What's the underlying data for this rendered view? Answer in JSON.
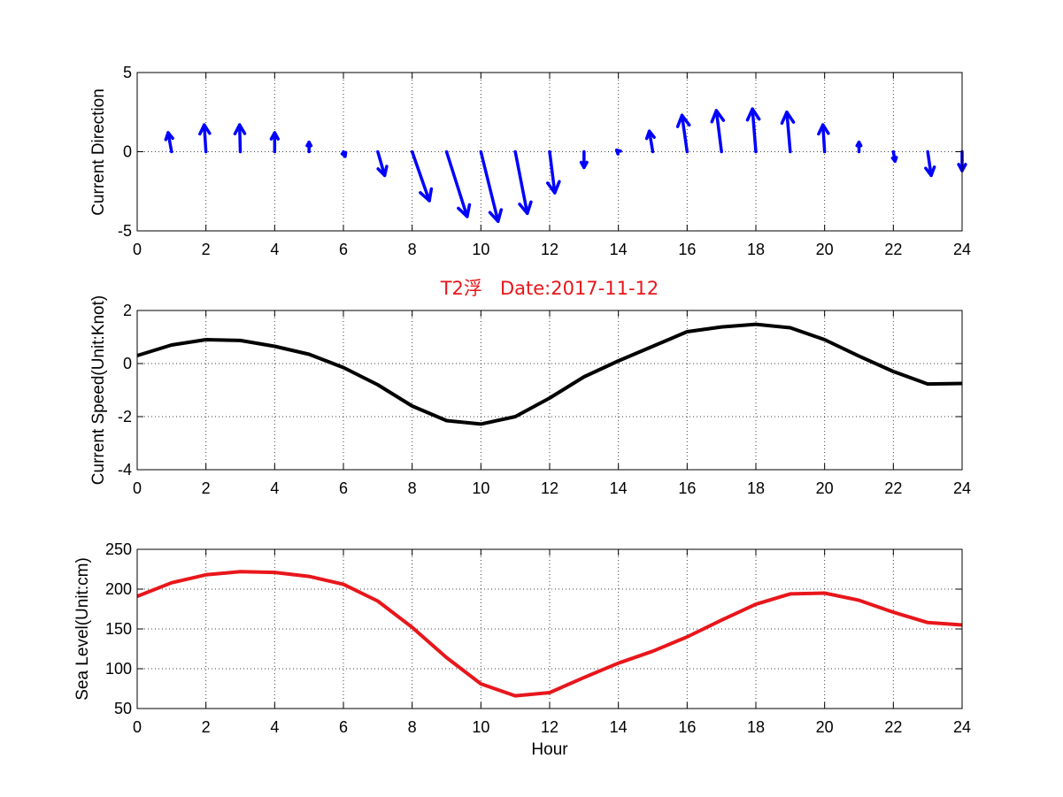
{
  "figure": {
    "title": "T2浮   Date:2017-11-12",
    "title_color": "#e8161b"
  },
  "chart_data": [
    {
      "type": "quiver",
      "ylabel": "Current Direction",
      "xlabel": "",
      "xlim": [
        0,
        24
      ],
      "ylim": [
        -5,
        5
      ],
      "xticks": [
        0,
        2,
        4,
        6,
        8,
        10,
        12,
        14,
        16,
        18,
        20,
        22,
        24
      ],
      "yticks": [
        -5,
        0,
        5
      ],
      "grid": true,
      "color": "#0000ff",
      "x": [
        1,
        2,
        3,
        4,
        5,
        6,
        7,
        8,
        9,
        10,
        11,
        12,
        13,
        14,
        15,
        16,
        17,
        18,
        19,
        20,
        21,
        22,
        23,
        24
      ],
      "u": [
        -0.1,
        -0.05,
        -0.02,
        0.0,
        0.0,
        0.05,
        0.2,
        0.5,
        0.6,
        0.5,
        0.35,
        0.15,
        0.0,
        -0.05,
        -0.1,
        -0.15,
        -0.15,
        -0.1,
        -0.1,
        -0.05,
        0.0,
        0.05,
        0.1,
        0.0
      ],
      "v": [
        1.2,
        1.7,
        1.7,
        1.2,
        0.6,
        -0.3,
        -1.5,
        -3.1,
        -4.1,
        -4.4,
        -3.9,
        -2.6,
        -1.0,
        0.1,
        1.3,
        2.3,
        2.6,
        2.7,
        2.5,
        1.7,
        0.6,
        -0.6,
        -1.5,
        -1.2
      ]
    },
    {
      "type": "line",
      "ylabel": "Current Speed(Unit:Knot)",
      "xlabel": "",
      "xlim": [
        0,
        24
      ],
      "ylim": [
        -4,
        2
      ],
      "xticks": [
        0,
        2,
        4,
        6,
        8,
        10,
        12,
        14,
        16,
        18,
        20,
        22,
        24
      ],
      "yticks": [
        -4,
        -2,
        0,
        2
      ],
      "grid": true,
      "series": [
        {
          "color": "#000000",
          "x": [
            0,
            1,
            2,
            3,
            4,
            5,
            6,
            7,
            8,
            9,
            10,
            11,
            12,
            13,
            14,
            15,
            16,
            17,
            18,
            19,
            20,
            21,
            22,
            23,
            24
          ],
          "y": [
            0.3,
            0.7,
            0.9,
            0.87,
            0.65,
            0.35,
            -0.15,
            -0.8,
            -1.6,
            -2.15,
            -2.28,
            -2.0,
            -1.3,
            -0.5,
            0.1,
            0.65,
            1.2,
            1.38,
            1.48,
            1.35,
            0.9,
            0.28,
            -0.3,
            -0.77,
            -0.75
          ]
        }
      ]
    },
    {
      "type": "line",
      "ylabel": "Sea Level(Unit:cm)",
      "xlabel": "Hour",
      "xlim": [
        0,
        24
      ],
      "ylim": [
        50,
        250
      ],
      "xticks": [
        0,
        2,
        4,
        6,
        8,
        10,
        12,
        14,
        16,
        18,
        20,
        22,
        24
      ],
      "yticks": [
        50,
        100,
        150,
        200,
        250
      ],
      "grid": true,
      "series": [
        {
          "color": "#e8161b",
          "x": [
            0,
            1,
            2,
            3,
            4,
            5,
            6,
            7,
            8,
            9,
            10,
            11,
            12,
            13,
            14,
            15,
            16,
            17,
            18,
            19,
            20,
            21,
            22,
            23,
            24
          ],
          "y": [
            191,
            208,
            218,
            222,
            221,
            216,
            206,
            185,
            152,
            114,
            81,
            66,
            70,
            89,
            107,
            122,
            140,
            161,
            181,
            194,
            195,
            186,
            171,
            158,
            155
          ]
        }
      ]
    }
  ]
}
